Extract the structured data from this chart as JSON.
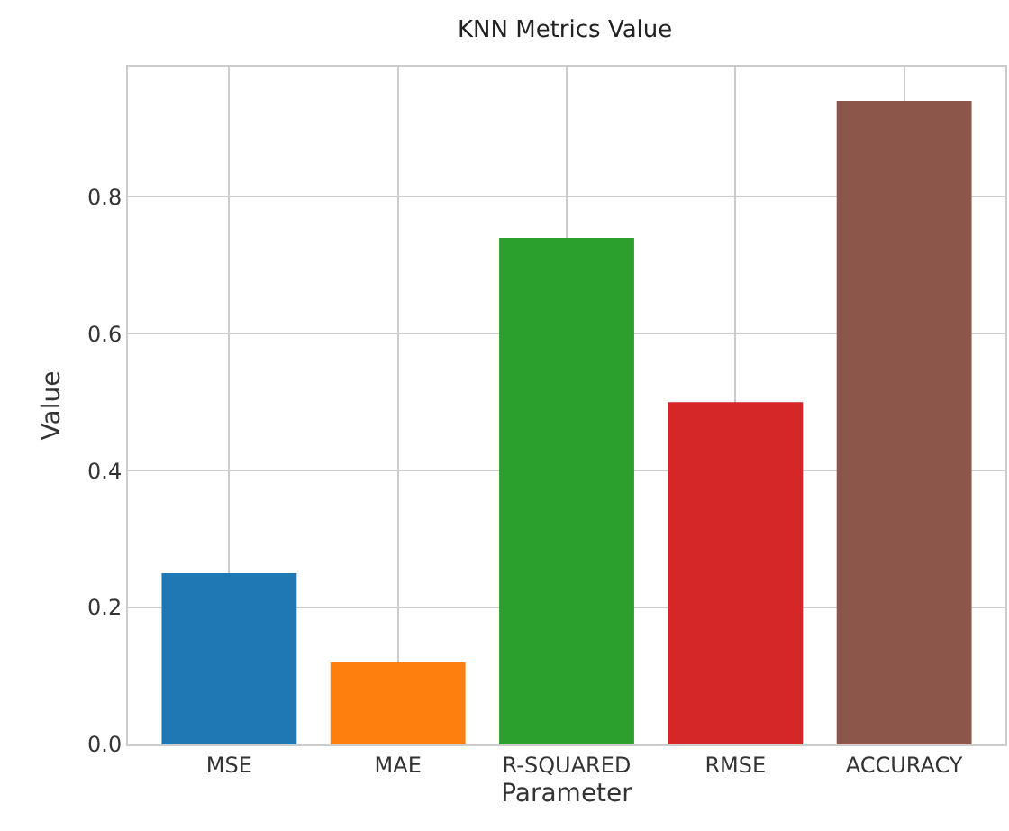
{
  "chart_data": {
    "type": "bar",
    "title": "KNN Metrics Value",
    "xlabel": "Parameter",
    "ylabel": "Value",
    "categories": [
      "MSE",
      "MAE",
      "R-SQUARED",
      "RMSE",
      "ACCURACY"
    ],
    "values": [
      0.25,
      0.12,
      0.74,
      0.5,
      0.94
    ],
    "colors": [
      "#1f77b4",
      "#ff7f0e",
      "#2ca02c",
      "#d62728",
      "#8c564b"
    ],
    "ylim": [
      0,
      0.99
    ],
    "yticks": [
      {
        "value": 0,
        "label": "0.0"
      },
      0.2,
      0.4,
      0.6,
      0.8
    ],
    "grid": true
  }
}
